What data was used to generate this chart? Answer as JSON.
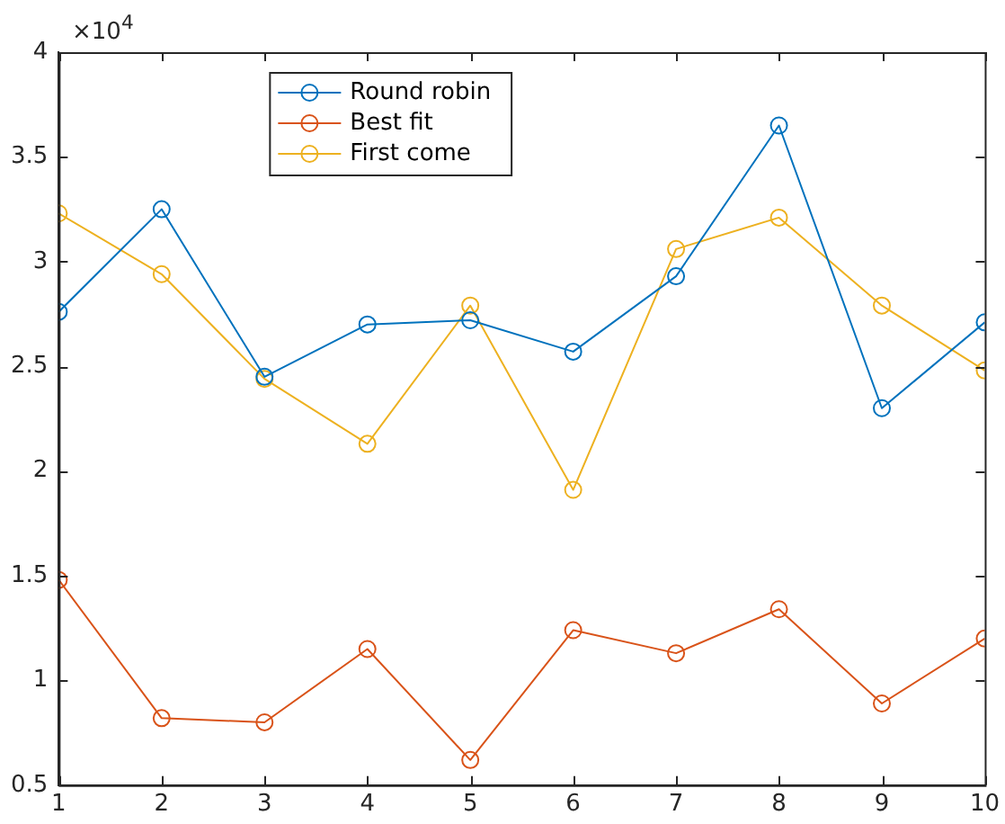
{
  "chart_data": {
    "type": "line",
    "x": [
      1,
      2,
      3,
      4,
      5,
      6,
      7,
      8,
      9,
      10
    ],
    "series": [
      {
        "name": "Round robin",
        "color": "#0072bd",
        "values": [
          2.76,
          3.25,
          2.45,
          2.7,
          2.72,
          2.57,
          2.93,
          3.65,
          2.3,
          2.71
        ]
      },
      {
        "name": "Best fit",
        "color": "#d95319",
        "values": [
          1.48,
          0.82,
          0.8,
          1.15,
          0.62,
          1.24,
          1.13,
          1.34,
          0.89,
          1.2
        ]
      },
      {
        "name": "First come",
        "color": "#edb120",
        "values": [
          3.23,
          2.94,
          2.44,
          2.13,
          2.79,
          1.91,
          3.06,
          3.21,
          2.79,
          2.48
        ]
      }
    ],
    "xlim": [
      1,
      10
    ],
    "xticks": [
      1,
      2,
      3,
      4,
      5,
      6,
      7,
      8,
      9,
      10
    ],
    "ylim": [
      0.5,
      4
    ],
    "yticks": [
      0.5,
      1,
      1.5,
      2,
      2.5,
      3,
      3.5,
      4
    ],
    "annotations": [
      "×10$^{4}$"
    ],
    "grid": false,
    "legend": "top left",
    "marker": "circle",
    "line_style": "solid"
  }
}
